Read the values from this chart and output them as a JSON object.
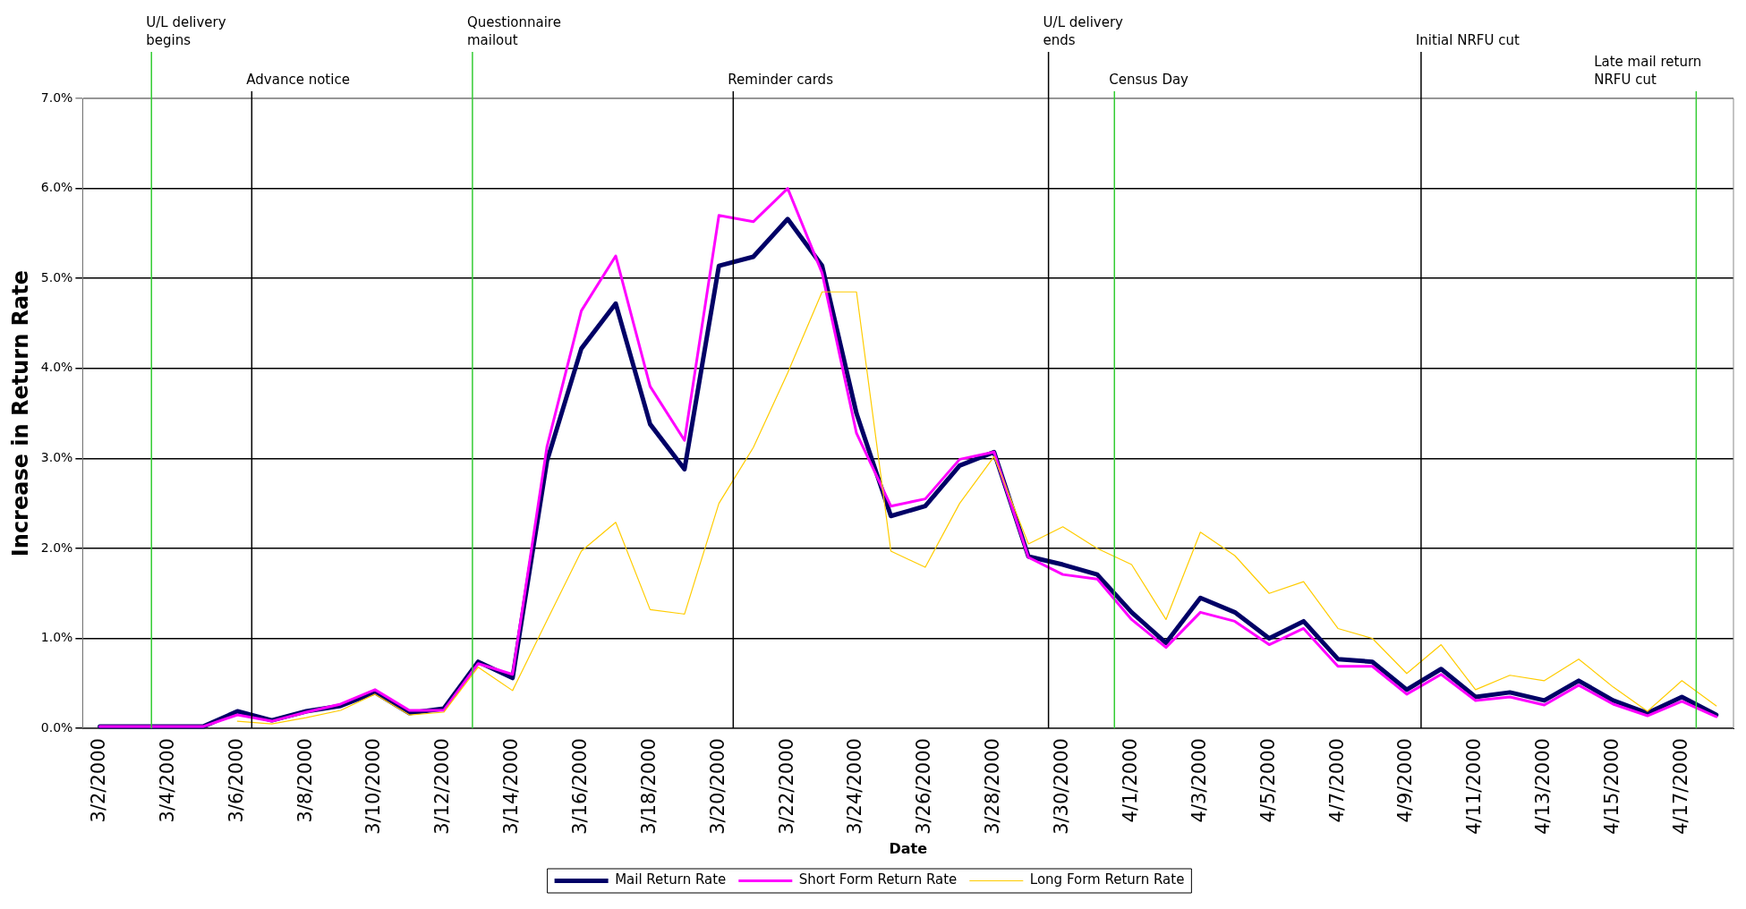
{
  "chart_data": {
    "type": "line",
    "xlabel": "Date",
    "ylabel": "Increase in Return Rate",
    "x": [
      "2000-03-02",
      "2000-03-03",
      "2000-03-04",
      "2000-03-05",
      "2000-03-06",
      "2000-03-07",
      "2000-03-08",
      "2000-03-09",
      "2000-03-10",
      "2000-03-11",
      "2000-03-12",
      "2000-03-13",
      "2000-03-14",
      "2000-03-15",
      "2000-03-16",
      "2000-03-17",
      "2000-03-18",
      "2000-03-19",
      "2000-03-20",
      "2000-03-21",
      "2000-03-22",
      "2000-03-23",
      "2000-03-24",
      "2000-03-25",
      "2000-03-26",
      "2000-03-27",
      "2000-03-28",
      "2000-03-29",
      "2000-03-30",
      "2000-03-31",
      "2000-04-01",
      "2000-04-02",
      "2000-04-03",
      "2000-04-04",
      "2000-04-05",
      "2000-04-06",
      "2000-04-07",
      "2000-04-08",
      "2000-04-09",
      "2000-04-10",
      "2000-04-11",
      "2000-04-12",
      "2000-04-13",
      "2000-04-14",
      "2000-04-15",
      "2000-04-16",
      "2000-04-17",
      "2000-04-18"
    ],
    "series": [
      {
        "name": "Mail Return Rate",
        "color": "#000066",
        "values": [
          0.02,
          0.02,
          0.02,
          0.02,
          0.19,
          0.09,
          0.19,
          0.25,
          0.4,
          0.17,
          0.22,
          0.74,
          0.56,
          2.97,
          4.22,
          4.72,
          3.38,
          2.88,
          5.14,
          5.24,
          5.66,
          5.14,
          3.5,
          2.36,
          2.47,
          2.92,
          3.07,
          1.91,
          1.82,
          1.71,
          1.29,
          0.95,
          1.45,
          1.29,
          1.0,
          1.19,
          0.77,
          0.74,
          0.43,
          0.66,
          0.35,
          0.4,
          0.31,
          0.53,
          0.31,
          0.17,
          0.35,
          0.15
        ]
      },
      {
        "name": "Short Form Return Rate",
        "color": "#ff00ff",
        "values": [
          0.02,
          0.02,
          0.02,
          0.02,
          0.15,
          0.08,
          0.18,
          0.27,
          0.43,
          0.2,
          0.2,
          0.72,
          0.6,
          3.13,
          4.64,
          5.25,
          3.8,
          3.2,
          5.7,
          5.63,
          6.0,
          5.06,
          3.28,
          2.47,
          2.55,
          2.99,
          3.07,
          1.9,
          1.71,
          1.66,
          1.21,
          0.9,
          1.29,
          1.19,
          0.93,
          1.11,
          0.69,
          0.69,
          0.38,
          0.6,
          0.31,
          0.35,
          0.26,
          0.48,
          0.27,
          0.14,
          0.3,
          0.13
        ]
      },
      {
        "name": "Long Form Return Rate",
        "color": "#ffcc00",
        "values": [
          null,
          null,
          null,
          null,
          0.08,
          0.05,
          0.12,
          0.2,
          0.38,
          0.15,
          0.18,
          0.68,
          0.42,
          1.2,
          1.97,
          2.29,
          1.32,
          1.27,
          2.5,
          3.12,
          3.95,
          4.85,
          4.85,
          1.97,
          1.79,
          2.5,
          3.02,
          2.05,
          2.24,
          2.0,
          1.82,
          1.21,
          2.18,
          1.92,
          1.5,
          1.63,
          1.11,
          1.0,
          0.61,
          0.93,
          0.43,
          0.59,
          0.53,
          0.77,
          0.46,
          0.19,
          0.53,
          0.25
        ]
      }
    ],
    "xlim": [
      "2000-03-01T12:00",
      "2000-04-18T12:00"
    ],
    "xticks": [
      {
        "value": "2000-03-02",
        "label": "3/2/2000"
      },
      {
        "value": "2000-03-04",
        "label": "3/4/2000"
      },
      {
        "value": "2000-03-06",
        "label": "3/6/2000"
      },
      {
        "value": "2000-03-08",
        "label": "3/8/2000"
      },
      {
        "value": "2000-03-10",
        "label": "3/10/2000"
      },
      {
        "value": "2000-03-12",
        "label": "3/12/2000"
      },
      {
        "value": "2000-03-14",
        "label": "3/14/2000"
      },
      {
        "value": "2000-03-16",
        "label": "3/16/2000"
      },
      {
        "value": "2000-03-18",
        "label": "3/18/2000"
      },
      {
        "value": "2000-03-20",
        "label": "3/20/2000"
      },
      {
        "value": "2000-03-22",
        "label": "3/22/2000"
      },
      {
        "value": "2000-03-24",
        "label": "3/24/2000"
      },
      {
        "value": "2000-03-26",
        "label": "3/26/2000"
      },
      {
        "value": "2000-03-28",
        "label": "3/28/2000"
      },
      {
        "value": "2000-03-30",
        "label": "3/30/2000"
      },
      {
        "value": "2000-04-01",
        "label": "4/1/2000"
      },
      {
        "value": "2000-04-03",
        "label": "4/3/2000"
      },
      {
        "value": "2000-04-05",
        "label": "4/5/2000"
      },
      {
        "value": "2000-04-07",
        "label": "4/7/2000"
      },
      {
        "value": "2000-04-09",
        "label": "4/9/2000"
      },
      {
        "value": "2000-04-11",
        "label": "4/11/2000"
      },
      {
        "value": "2000-04-13",
        "label": "4/13/2000"
      },
      {
        "value": "2000-04-15",
        "label": "4/15/2000"
      },
      {
        "value": "2000-04-17",
        "label": "4/17/2000"
      }
    ],
    "ylim": [
      0,
      7
    ],
    "yticks": [
      {
        "value": 0,
        "label": "0.0%"
      },
      {
        "value": 1,
        "label": "1.0%"
      },
      {
        "value": 2,
        "label": "2.0%"
      },
      {
        "value": 3,
        "label": "3.0%"
      },
      {
        "value": 4,
        "label": "4.0%"
      },
      {
        "value": 5,
        "label": "5.0%"
      },
      {
        "value": 6,
        "label": "6.0%"
      },
      {
        "value": 7,
        "label": "7.0%"
      }
    ],
    "ref_lines": [
      {
        "axis": "x",
        "value": "2000-03-03T12:00",
        "label": "U/L delivery begins",
        "color": "#33cc33"
      },
      {
        "axis": "x",
        "value": "2000-03-06T10:00",
        "label": "Advance notice",
        "color": "#000000"
      },
      {
        "axis": "x",
        "value": "2000-03-12T20:00",
        "label": "Questionnaire mailout",
        "color": "#33cc33"
      },
      {
        "axis": "x",
        "value": "2000-03-20T10:00",
        "label": "Reminder cards",
        "color": "#000000"
      },
      {
        "axis": "x",
        "value": "2000-03-29T14:00",
        "label": "U/L delivery ends",
        "color": "#000000"
      },
      {
        "axis": "x",
        "value": "2000-03-31T12:00",
        "label": "Census Day",
        "color": "#33cc33"
      },
      {
        "axis": "x",
        "value": "2000-04-09T10:00",
        "label": "Initial NRFU cut",
        "color": "#000000"
      },
      {
        "axis": "x",
        "value": "2000-04-17T10:00",
        "label": "Late mail return NRFU cut",
        "color": "#33cc33"
      }
    ],
    "grid": "y",
    "legend": "bottom",
    "marker": "none",
    "line_style": "solid"
  }
}
